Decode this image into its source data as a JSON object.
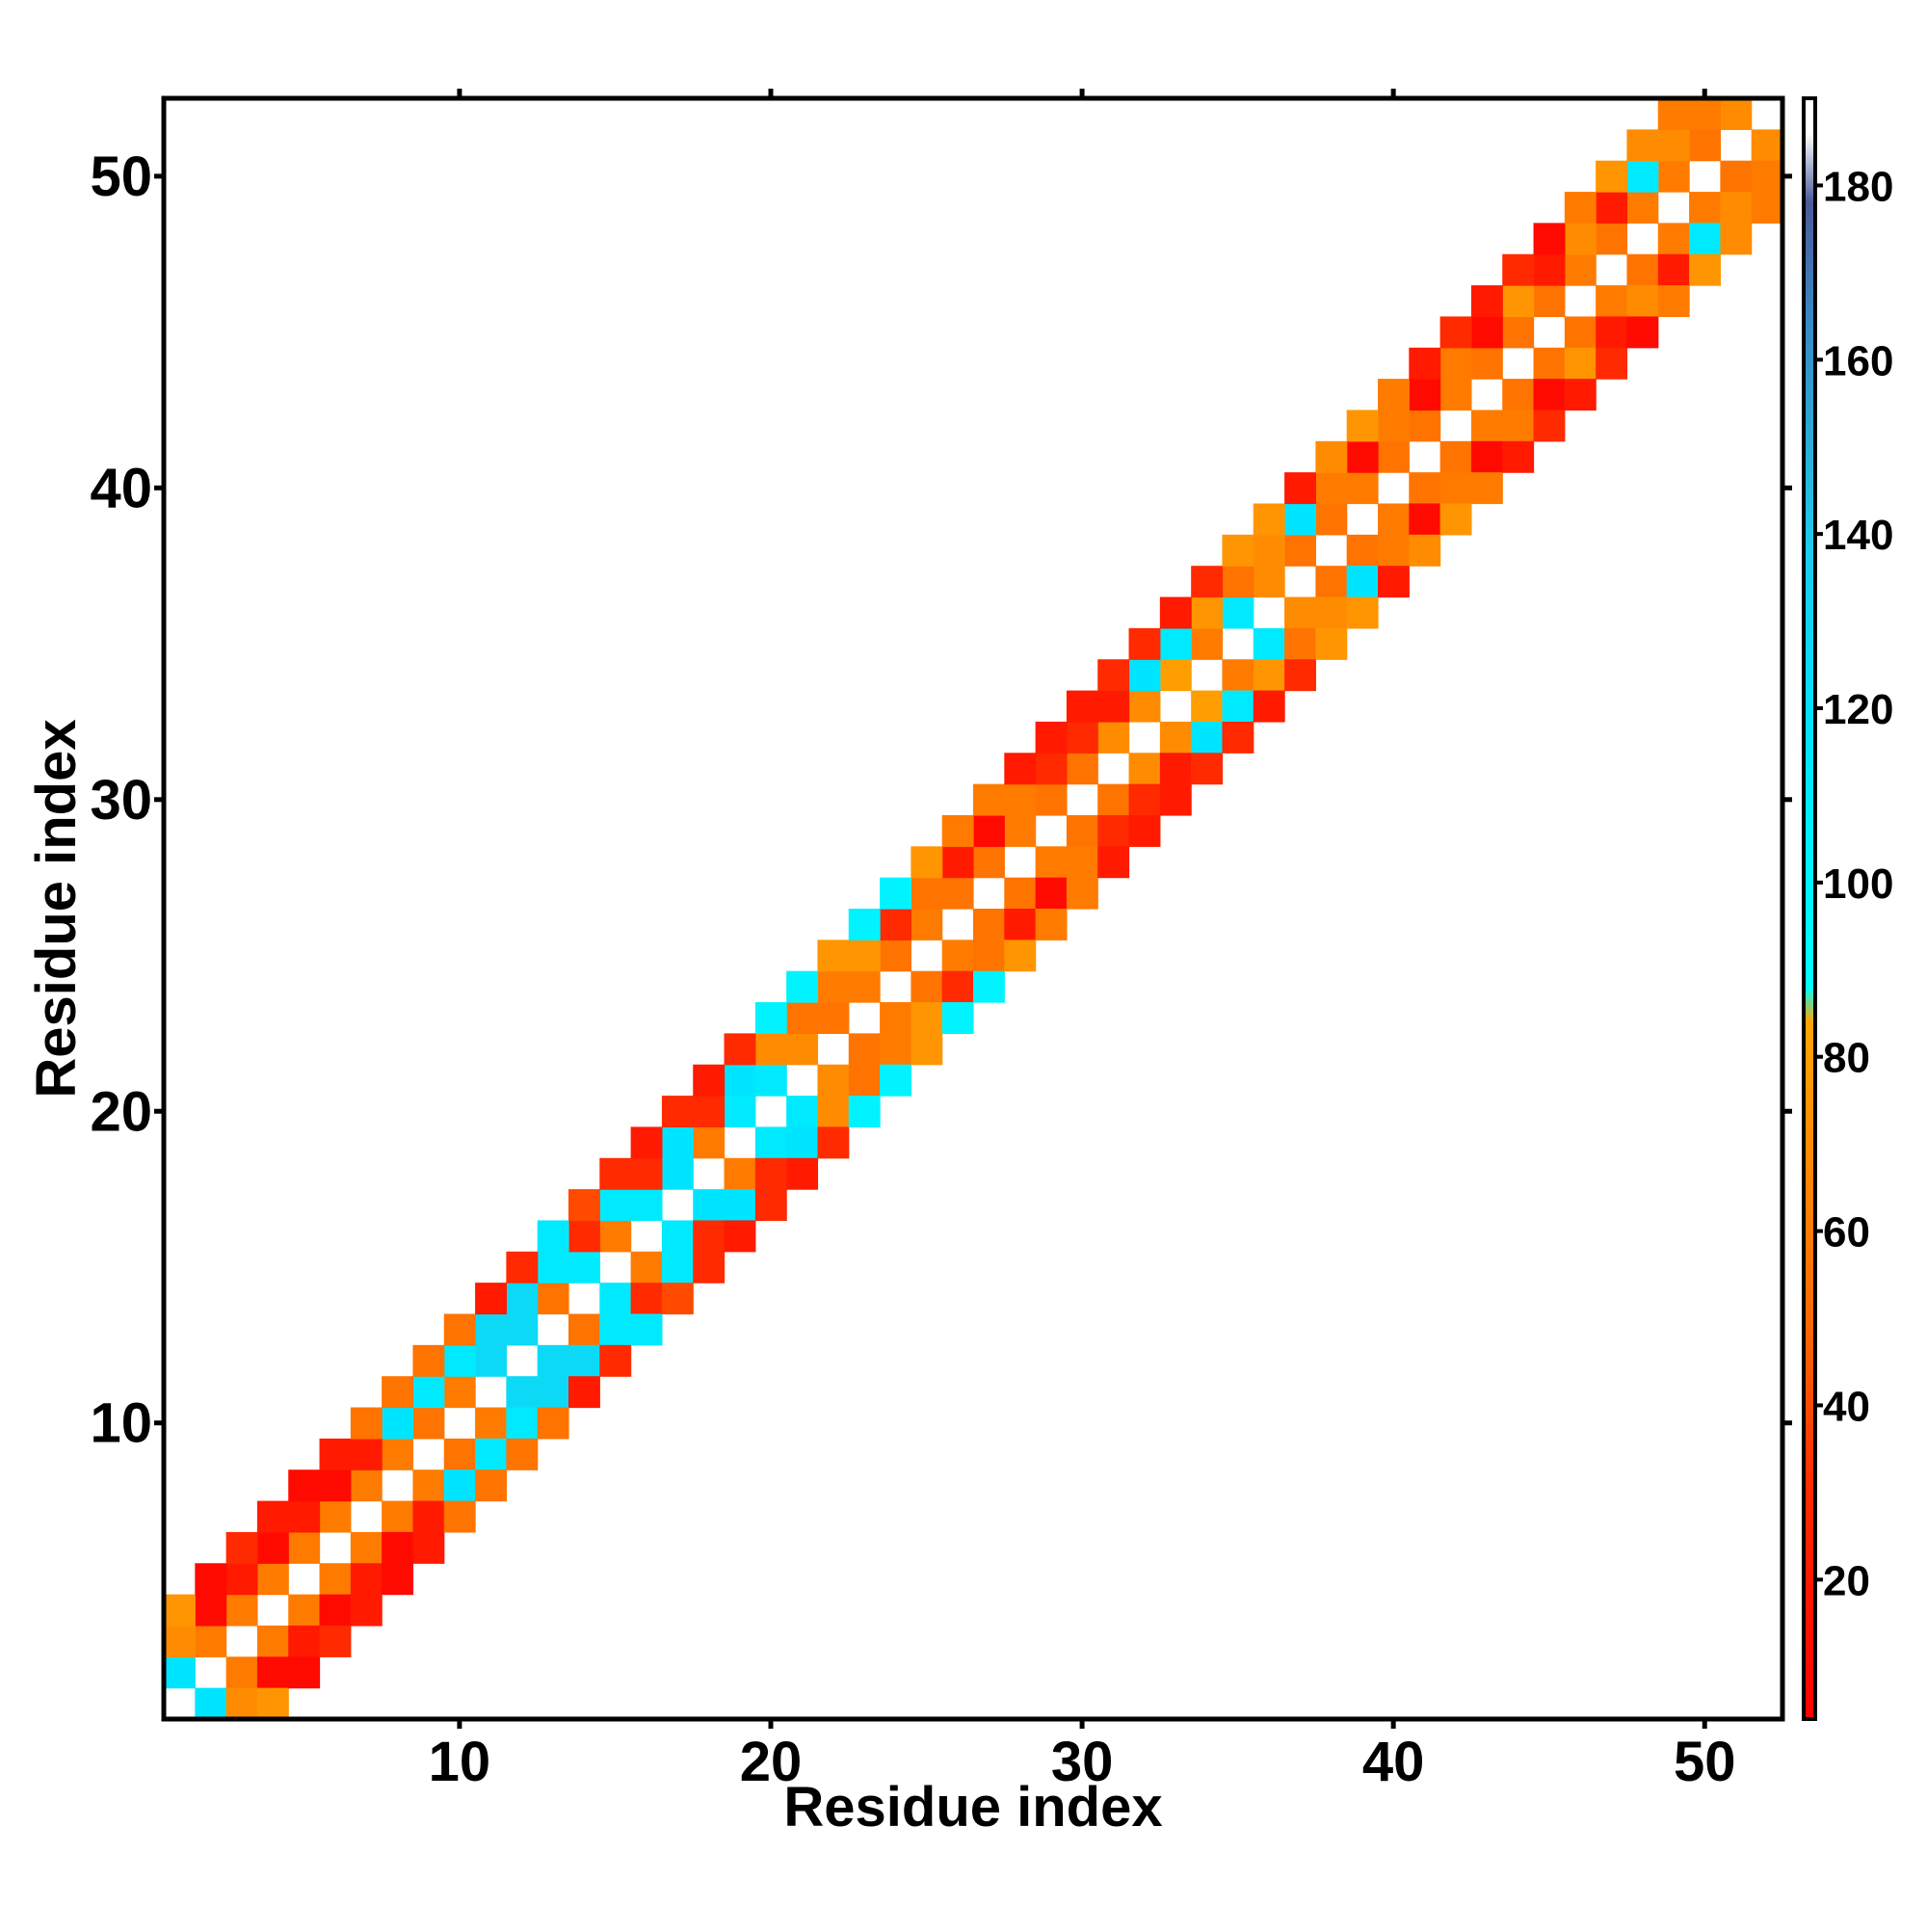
{
  "chart_data": {
    "type": "heatmap",
    "title": "",
    "xlabel": "Residue index",
    "ylabel": "Residue index",
    "xlim": [
      0.5,
      52.5
    ],
    "ylim": [
      0.5,
      52.5
    ],
    "x_ticks": [
      10,
      20,
      30,
      40,
      50
    ],
    "y_ticks": [
      10,
      20,
      30,
      40,
      50
    ],
    "colorbar": {
      "range": [
        4,
        190
      ],
      "ticks": [
        20,
        40,
        60,
        80,
        100,
        120,
        140,
        160,
        180
      ],
      "stops": [
        {
          "value": 4,
          "color": "#ff0000"
        },
        {
          "value": 30,
          "color": "#ff2a00"
        },
        {
          "value": 50,
          "color": "#ff6a00"
        },
        {
          "value": 70,
          "color": "#ff8c00"
        },
        {
          "value": 84,
          "color": "#ffa500"
        },
        {
          "value": 88,
          "color": "#00ffff"
        },
        {
          "value": 115,
          "color": "#00e5ff"
        },
        {
          "value": 140,
          "color": "#1ec8e8"
        },
        {
          "value": 165,
          "color": "#3a86c0"
        },
        {
          "value": 178,
          "color": "#4a5a9a"
        },
        {
          "value": 186,
          "color": "#ffffff"
        }
      ]
    },
    "diagonal_offsets": [
      1,
      2,
      3
    ],
    "diagonal_values": {
      "d1": [
        115,
        60,
        60,
        60,
        60,
        60,
        60,
        60,
        55,
        60,
        125,
        125,
        55,
        110,
        60,
        110,
        115,
        60,
        110,
        110,
        70,
        55,
        60,
        55,
        60,
        55,
        55,
        60,
        55,
        55,
        70,
        70,
        80,
        60,
        110,
        70,
        55,
        55,
        60,
        55,
        55,
        60,
        55,
        55,
        55,
        60,
        55,
        60,
        60,
        55,
        70
      ],
      "d2": [
        70,
        10,
        20,
        10,
        20,
        10,
        20,
        115,
        110,
        110,
        125,
        125,
        110,
        30,
        110,
        30,
        115,
        30,
        115,
        70,
        55,
        60,
        75,
        30,
        55,
        20,
        10,
        60,
        30,
        30,
        20,
        115,
        110,
        75,
        55,
        70,
        115,
        60,
        10,
        60,
        10,
        60,
        10,
        75,
        20,
        70,
        20,
        110,
        70,
        60
      ],
      "d3": [
        75,
        10,
        30,
        20,
        10,
        20,
        55,
        55,
        55,
        55,
        20,
        30,
        110,
        40,
        30,
        20,
        30,
        20,
        30,
        100,
        100,
        75,
        100,
        100,
        75,
        60,
        60,
        20,
        20,
        20,
        30,
        30,
        20,
        30,
        75,
        75,
        20,
        70,
        75,
        60,
        20,
        30,
        20,
        30,
        10,
        60,
        75,
        70,
        60
      ]
    }
  }
}
